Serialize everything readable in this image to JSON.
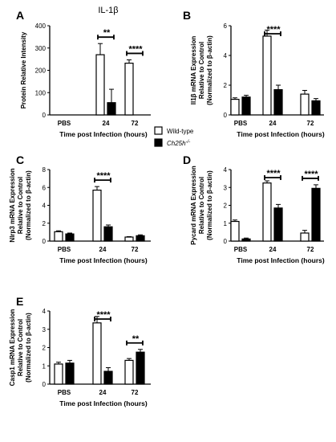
{
  "legend": {
    "items": [
      {
        "label": "Wild-type",
        "fill": "#ffffff"
      },
      {
        "label": "Ch25h-/-",
        "fill": "#000000"
      }
    ]
  },
  "chart_data": [
    {
      "panel": "A",
      "type": "bar",
      "title": "IL-1β",
      "ylabel": "Protein Relative Intensity",
      "xlabel": "Time post Infection (hours)",
      "categories": [
        "PBS",
        "24",
        "72"
      ],
      "yticks": [
        "0",
        "100",
        "200",
        "300",
        "400"
      ],
      "ylim": [
        0,
        400
      ],
      "series": [
        {
          "name": "Wild-type",
          "values": [
            0,
            270,
            232
          ],
          "errors": [
            0,
            50,
            15
          ]
        },
        {
          "name": "Ch25h-/-",
          "values": [
            0,
            55,
            null
          ],
          "errors": [
            0,
            60,
            null
          ]
        }
      ],
      "significance": [
        {
          "category_index": 1,
          "label": "**"
        },
        {
          "category_index": 2,
          "label": "****"
        }
      ]
    },
    {
      "panel": "B",
      "type": "bar",
      "ylabel_lines": [
        "Il1β mRNA Expression",
        "Relative to Control",
        "(Normalized to β-actin)"
      ],
      "xlabel": "Time post Infection (hours)",
      "categories": [
        "PBS",
        "24",
        "72"
      ],
      "yticks": [
        "0",
        "2",
        "4",
        "6"
      ],
      "ylim": [
        0,
        6
      ],
      "series": [
        {
          "name": "Wild-type",
          "values": [
            1.05,
            5.3,
            1.4
          ],
          "errors": [
            0.1,
            0.4,
            0.25
          ]
        },
        {
          "name": "Ch25h-/-",
          "values": [
            1.2,
            1.7,
            0.95
          ],
          "errors": [
            0.12,
            0.3,
            0.15
          ]
        }
      ],
      "significance": [
        {
          "category_index": 1,
          "label": "****"
        }
      ]
    },
    {
      "panel": "C",
      "type": "bar",
      "ylabel_lines": [
        "Nlrp3 mRNA Expression",
        "Relative to Control",
        "(Normalized to β-actin)"
      ],
      "xlabel": "Time post Infection (hours)",
      "categories": [
        "PBS",
        "24",
        "72"
      ],
      "yticks": [
        "0",
        "2",
        "4",
        "6",
        "8"
      ],
      "ylim": [
        0,
        8
      ],
      "series": [
        {
          "name": "Wild-type",
          "values": [
            1.05,
            5.7,
            0.45
          ],
          "errors": [
            0.1,
            0.4,
            0.05
          ]
        },
        {
          "name": "Ch25h-/-",
          "values": [
            0.8,
            1.6,
            0.6
          ],
          "errors": [
            0.1,
            0.2,
            0.1
          ]
        }
      ],
      "significance": [
        {
          "category_index": 1,
          "label": "****"
        }
      ]
    },
    {
      "panel": "D",
      "type": "bar",
      "ylabel_lines": [
        "Pycard mRNA Expression",
        "Relative to Control",
        "(Normalized to β-actin)"
      ],
      "xlabel": "Time post Infection (hours)",
      "categories": [
        "PBS",
        "24",
        "72"
      ],
      "yticks": [
        "0",
        "1",
        "2",
        "3",
        "4"
      ],
      "ylim": [
        0,
        4
      ],
      "series": [
        {
          "name": "Wild-type",
          "values": [
            1.1,
            3.25,
            0.45
          ],
          "errors": [
            0.08,
            0.12,
            0.15
          ]
        },
        {
          "name": "Ch25h-/-",
          "values": [
            0.12,
            1.85,
            2.95
          ],
          "errors": [
            0.05,
            0.2,
            0.2
          ]
        }
      ],
      "significance": [
        {
          "category_index": 1,
          "label": "****"
        },
        {
          "category_index": 2,
          "label": "****"
        }
      ]
    },
    {
      "panel": "E",
      "type": "bar",
      "ylabel_lines": [
        "Casp1 mRNA Expression",
        "Relative to Control",
        "(Normalized to β-actin)"
      ],
      "xlabel": "Time post Infection (hours)",
      "categories": [
        "PBS",
        "24",
        "72"
      ],
      "yticks": [
        "0",
        "1",
        "2",
        "3",
        "4"
      ],
      "ylim": [
        0,
        4
      ],
      "series": [
        {
          "name": "Wild-type",
          "values": [
            1.1,
            3.35,
            1.3
          ],
          "errors": [
            0.1,
            0.35,
            0.1
          ]
        },
        {
          "name": "Ch25h-/-",
          "values": [
            1.15,
            0.7,
            1.75
          ],
          "errors": [
            0.15,
            0.2,
            0.15
          ]
        }
      ],
      "significance": [
        {
          "category_index": 1,
          "label": "****"
        },
        {
          "category_index": 2,
          "label": "**"
        }
      ]
    }
  ]
}
